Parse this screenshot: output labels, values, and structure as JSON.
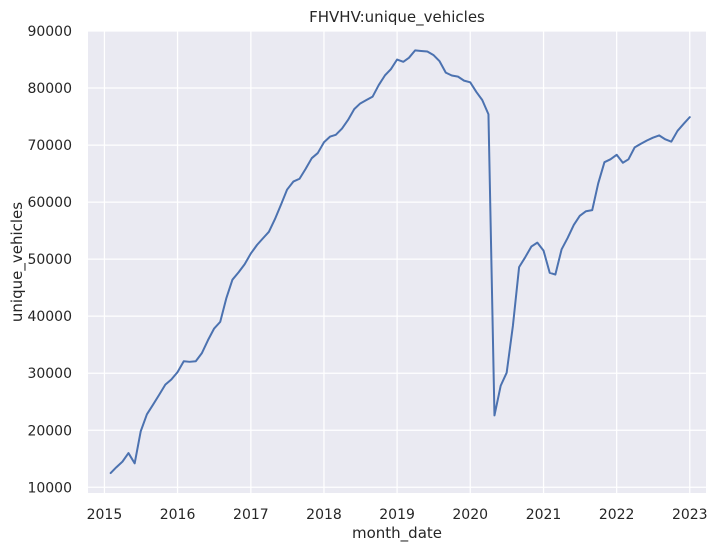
{
  "chart_data": {
    "type": "line",
    "title": "FHVHV:unique_vehicles",
    "xlabel": "month_date",
    "ylabel": "unique_vehicles",
    "x_type": "date",
    "xlim": [
      "2014-10-11",
      "2023-03-23"
    ],
    "ylim": [
      9000,
      90000
    ],
    "x_ticks": [
      "2015-01-01",
      "2016-01-01",
      "2017-01-01",
      "2018-01-01",
      "2019-01-01",
      "2020-01-01",
      "2021-01-01",
      "2022-01-01",
      "2023-01-01"
    ],
    "x_tick_labels": [
      "2015",
      "2016",
      "2017",
      "2018",
      "2019",
      "2020",
      "2021",
      "2022",
      "2023"
    ],
    "y_ticks": [
      10000,
      20000,
      30000,
      40000,
      50000,
      60000,
      70000,
      80000,
      90000
    ],
    "y_tick_labels": [
      "10000",
      "20000",
      "30000",
      "40000",
      "50000",
      "60000",
      "70000",
      "80000",
      "90000"
    ],
    "grid": true,
    "colors": {
      "line": "#4c72b0",
      "background": "#eaeaf2",
      "grid": "#ffffff"
    },
    "series": [
      {
        "x": [
          "2015-02-01",
          "2015-03-01",
          "2015-04-01",
          "2015-05-01",
          "2015-06-01",
          "2015-07-01",
          "2015-08-01",
          "2015-09-01",
          "2015-10-01",
          "2015-11-01",
          "2015-12-01",
          "2016-01-01",
          "2016-02-01",
          "2016-03-01",
          "2016-04-01",
          "2016-05-01",
          "2016-06-01",
          "2016-07-01",
          "2016-08-01",
          "2016-09-01",
          "2016-10-01",
          "2016-11-01",
          "2016-12-01",
          "2017-01-01",
          "2017-02-01",
          "2017-03-01",
          "2017-04-01",
          "2017-05-01",
          "2017-06-01",
          "2017-07-01",
          "2017-08-01",
          "2017-09-01",
          "2017-10-01",
          "2017-11-01",
          "2017-12-01",
          "2018-01-01",
          "2018-02-01",
          "2018-03-01",
          "2018-04-01",
          "2018-05-01",
          "2018-06-01",
          "2018-07-01",
          "2018-08-01",
          "2018-09-01",
          "2018-10-01",
          "2018-11-01",
          "2018-12-01",
          "2019-01-01",
          "2019-02-01",
          "2019-03-01",
          "2019-04-01",
          "2019-05-01",
          "2019-06-01",
          "2019-07-01",
          "2019-08-01",
          "2019-09-01",
          "2019-10-01",
          "2019-11-01",
          "2019-12-01",
          "2020-01-01",
          "2020-02-01",
          "2020-03-01",
          "2020-04-01",
          "2020-05-01",
          "2020-06-01",
          "2020-07-01",
          "2020-08-01",
          "2020-09-01",
          "2020-10-01",
          "2020-11-01",
          "2020-12-01",
          "2021-01-01",
          "2021-02-01",
          "2021-03-01",
          "2021-04-01",
          "2021-05-01",
          "2021-06-01",
          "2021-07-01",
          "2021-08-01",
          "2021-09-01",
          "2021-10-01",
          "2021-11-01",
          "2021-12-01",
          "2022-01-01",
          "2022-02-01",
          "2022-03-01",
          "2022-04-01",
          "2022-05-01",
          "2022-06-01",
          "2022-07-01",
          "2022-08-01",
          "2022-09-01",
          "2022-10-01",
          "2022-11-01",
          "2022-12-01",
          "2023-01-01"
        ],
        "y": [
          12500,
          13500,
          14500,
          16000,
          14200,
          19800,
          22800,
          24500,
          26200,
          28000,
          28900,
          30200,
          32100,
          32000,
          32100,
          33500,
          35800,
          37800,
          39000,
          43200,
          46400,
          47700,
          49100,
          51000,
          52500,
          53600,
          54800,
          57000,
          59600,
          62200,
          63600,
          64100,
          65800,
          67700,
          68600,
          70500,
          71500,
          71800,
          72900,
          74400,
          76300,
          77300,
          77900,
          78500,
          80500,
          82200,
          83300,
          85000,
          84600,
          85300,
          86600,
          86500,
          86400,
          85800,
          84700,
          82700,
          82200,
          82000,
          81300,
          81000,
          79300,
          77900,
          75400,
          22600,
          27800,
          30100,
          38300,
          48600,
          50300,
          52200,
          52900,
          51500,
          47600,
          47300,
          51700,
          53700,
          56000,
          57600,
          58400,
          58600,
          63300,
          67000,
          67500,
          68300,
          66900,
          67500,
          69600,
          70200,
          70800,
          71300,
          71700,
          71000,
          70600,
          72500,
          73700,
          74900
        ]
      }
    ]
  }
}
